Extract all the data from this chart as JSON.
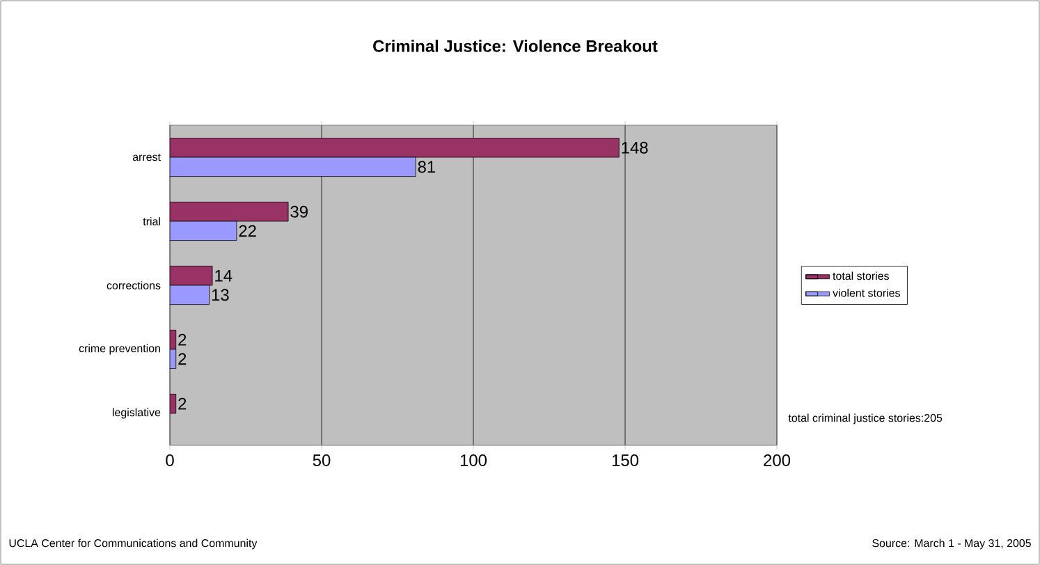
{
  "chart_data": {
    "type": "bar",
    "orientation": "horizontal",
    "title": "Criminal Justice: Violence Breakout",
    "categories": [
      "arrest",
      "trial",
      "corrections",
      "crime prevention",
      "legislative"
    ],
    "series": [
      {
        "name": "total stories",
        "color": "#993366",
        "values": [
          148,
          39,
          14,
          2,
          2
        ]
      },
      {
        "name": "violent stories",
        "color": "#9999ff",
        "values": [
          81,
          22,
          13,
          2,
          null
        ]
      }
    ],
    "xlim": [
      0,
      200
    ],
    "xticks": [
      0,
      50,
      100,
      150,
      200
    ],
    "grid": "x",
    "legend": "right",
    "data_labels": true,
    "annotations": [
      "total criminal justice stories:205",
      "UCLA Center for Communications and Community",
      "Source: March 1 - May 31, 2005"
    ]
  }
}
